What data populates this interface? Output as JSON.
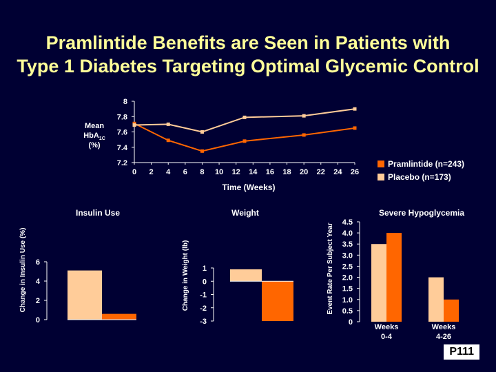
{
  "title_line1": "Pramlintide Benefits are Seen in Patients with",
  "title_line2": "Type 1 Diabetes Targeting Optimal Glycemic Control",
  "page_code": "P111",
  "colors": {
    "background": "#000033",
    "title": "#ffff99",
    "pramlintide": "#ff6600",
    "placebo": "#ffcc99"
  },
  "legend": {
    "pramlintide": "Pramlintide (n=243)",
    "placebo": "Placebo (n=173)",
    "placement": "right of line chart"
  },
  "chart_data": [
    {
      "type": "line",
      "ylabel_lines": [
        "Mean",
        "HbA1C",
        "(%)"
      ],
      "xlabel": "Time (Weeks)",
      "ylim": [
        7.2,
        8.0
      ],
      "xlim": [
        0,
        26
      ],
      "yticks": [
        "8",
        "7.8",
        "7.6",
        "7.4",
        "7.2"
      ],
      "yticks_values": [
        8.0,
        7.8,
        7.6,
        7.4,
        7.2
      ],
      "xticks": [
        "0",
        "2",
        "4",
        "6",
        "8",
        "10",
        "12",
        "14",
        "16",
        "18",
        "20",
        "22",
        "24",
        "26"
      ],
      "series": [
        {
          "name": "Pramlintide (n=243)",
          "x": [
            0,
            4,
            8,
            13,
            20,
            26
          ],
          "y": [
            7.71,
            7.49,
            7.35,
            7.48,
            7.56,
            7.65
          ]
        },
        {
          "name": "Placebo (n=173)",
          "x": [
            0,
            4,
            8,
            13,
            20,
            26
          ],
          "y": [
            7.69,
            7.7,
            7.6,
            7.79,
            7.81,
            7.9
          ]
        }
      ]
    },
    {
      "type": "bar",
      "title": "Insulin Use",
      "ylabel": "Change in Insulin Use (%)",
      "ylim": [
        0,
        6
      ],
      "yticks": [
        "0",
        "2",
        "4",
        "6"
      ],
      "yticks_values": [
        0,
        2,
        4,
        6
      ],
      "series": [
        {
          "name": "Placebo (n=173)",
          "values": [
            5.1
          ]
        },
        {
          "name": "Pramlintide (n=243)",
          "values": [
            0.6
          ]
        }
      ]
    },
    {
      "type": "bar",
      "title": "Weight",
      "ylabel": "Change in Weight (lb)",
      "ylim": [
        -3,
        1
      ],
      "yticks": [
        "1",
        "0",
        "-1",
        "-2",
        "-3"
      ],
      "yticks_values": [
        1,
        0,
        -1,
        -2,
        -3
      ],
      "series": [
        {
          "name": "Placebo (n=173)",
          "values": [
            0.9
          ]
        },
        {
          "name": "Pramlintide (n=243)",
          "values": [
            -3.0
          ]
        }
      ]
    },
    {
      "type": "bar",
      "title": "Severe Hypoglycemia",
      "ylabel": "Event Rate Per Subject Year",
      "ylim": [
        0,
        4.5
      ],
      "yticks": [
        "4.5",
        "4.0",
        "3.5",
        "3.0",
        "2.5",
        "2.0",
        "1.5",
        "1.0",
        "0.5",
        "0"
      ],
      "yticks_values": [
        4.5,
        4.0,
        3.5,
        3.0,
        2.5,
        2.0,
        1.5,
        1.0,
        0.5,
        0
      ],
      "categories": [
        "Weeks 0-4",
        "Weeks 4-26"
      ],
      "category_lines": [
        [
          "Weeks",
          "0-4"
        ],
        [
          "Weeks",
          "4-26"
        ]
      ],
      "series": [
        {
          "name": "Placebo (n=173)",
          "values": [
            3.5,
            2.0
          ]
        },
        {
          "name": "Pramlintide (n=243)",
          "values": [
            4.0,
            1.0
          ]
        }
      ]
    }
  ]
}
